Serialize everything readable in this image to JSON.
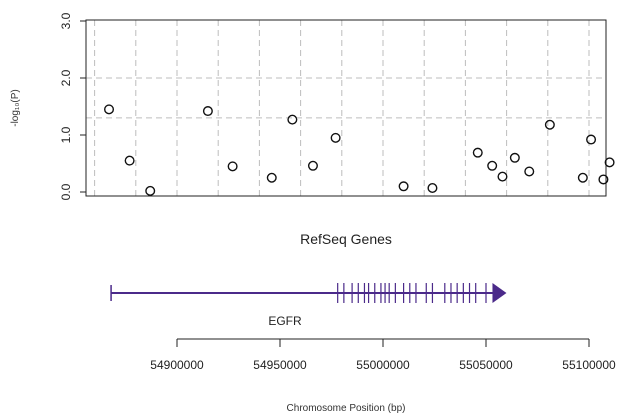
{
  "chart_data": {
    "type": "scatter",
    "ylabel": "-log₁₀(P)",
    "ylim": [
      0,
      3.0
    ],
    "xlim": [
      54862000,
      55110000
    ],
    "y_ticks": [
      "0.0",
      "1.0",
      "2.0",
      "3.0"
    ],
    "dashed_horizontal_lines": [
      2.0,
      1.3
    ],
    "vertical_grid": "dashed",
    "points": [
      {
        "x": 54867000,
        "y": 1.45
      },
      {
        "x": 54877000,
        "y": 0.55
      },
      {
        "x": 54887000,
        "y": 0.02
      },
      {
        "x": 54915000,
        "y": 1.42
      },
      {
        "x": 54927000,
        "y": 0.45
      },
      {
        "x": 54946000,
        "y": 0.25
      },
      {
        "x": 54956000,
        "y": 1.27
      },
      {
        "x": 54966000,
        "y": 0.46
      },
      {
        "x": 54977000,
        "y": 0.95
      },
      {
        "x": 55010000,
        "y": 0.1
      },
      {
        "x": 55024000,
        "y": 0.07
      },
      {
        "x": 55046000,
        "y": 0.69
      },
      {
        "x": 55053000,
        "y": 0.46
      },
      {
        "x": 55058000,
        "y": 0.27
      },
      {
        "x": 55064000,
        "y": 0.6
      },
      {
        "x": 55071000,
        "y": 0.36
      },
      {
        "x": 55081000,
        "y": 1.18
      },
      {
        "x": 55097000,
        "y": 0.25
      },
      {
        "x": 55101000,
        "y": 0.92
      },
      {
        "x": 55107000,
        "y": 0.22
      },
      {
        "x": 55110000,
        "y": 0.52
      }
    ],
    "gene_track_title": "RefSeq Genes",
    "gene": {
      "name": "EGFR",
      "color": "#4b2a8a",
      "start": 54868000,
      "end": 55058000,
      "exons": [
        54978000,
        54981000,
        54985000,
        54988000,
        54991000,
        54993000,
        54996000,
        54999000,
        55001000,
        55003000,
        55006000,
        55010000,
        55013000,
        55016000,
        55021000,
        55024000,
        55030000,
        55033000,
        55036000,
        55039000,
        55042000,
        55045000,
        55050000
      ]
    },
    "xaxis": {
      "label": "Chromosome Position (bp)",
      "ticks": [
        54900000,
        54950000,
        55000000,
        55050000,
        55100000
      ],
      "tick_labels": [
        "54900000",
        "54950000",
        "55000000",
        "55050000",
        "55100000"
      ]
    }
  }
}
